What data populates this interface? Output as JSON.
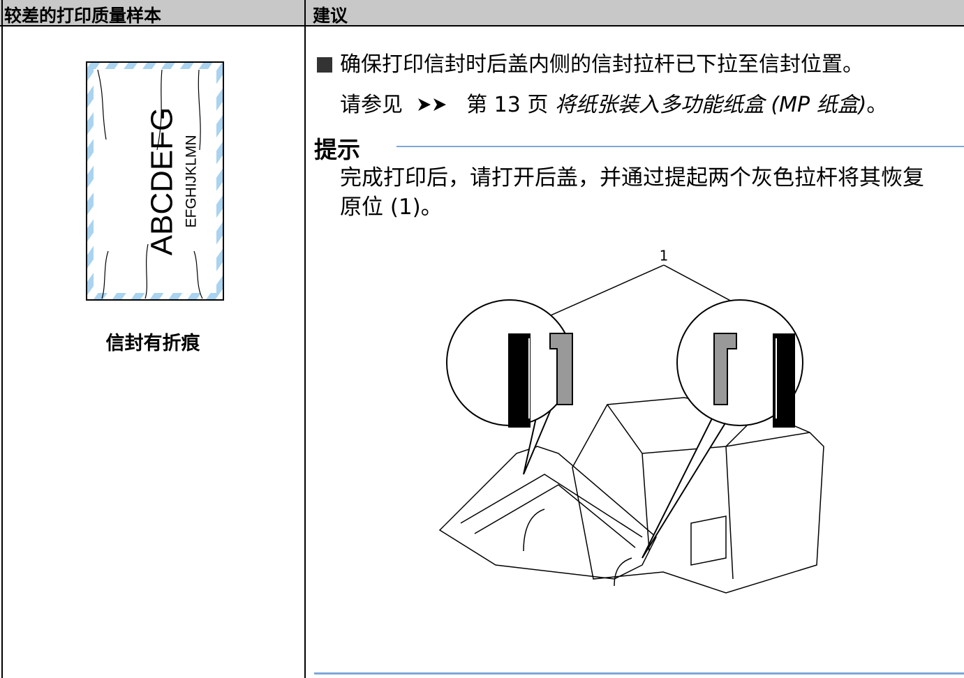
{
  "table": {
    "headers": [
      "较差的打印质量样本",
      "建议"
    ],
    "sample": {
      "illustration_text": [
        "ABCDEFG",
        "EFGHIJKLMN"
      ],
      "caption": "信封有折痕"
    },
    "advice": {
      "bullet": "确保打印信封时后盖内侧的信封拉杆已下拉至信封位置。",
      "reference": {
        "prefix": "请参见",
        "page": "第 13 页",
        "link": "将纸张装入多功能纸盒 (MP 纸盒)",
        "suffix": "。"
      }
    },
    "note": {
      "title": "提示",
      "text": "完成打印后，请打开后盖，并通过提起两个灰色拉杆将其恢复原位 (1)。",
      "callout": "1"
    }
  }
}
